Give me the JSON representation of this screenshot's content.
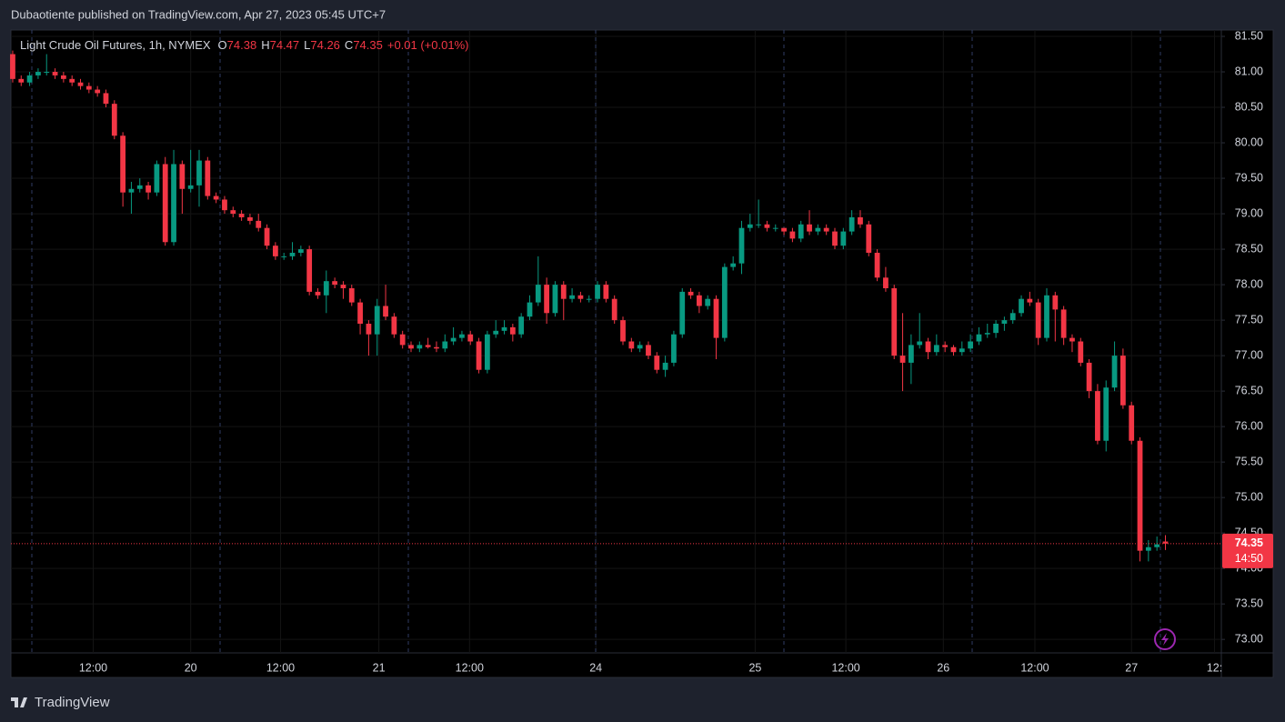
{
  "header": {
    "publisher": "Dubaotiente published on TradingView.com, Apr 27, 2023 05:45 UTC+7"
  },
  "footer": {
    "logo": "TradingView"
  },
  "chart_data": {
    "type": "candlestick",
    "title": "Light Crude Oil Futures, 1h, NYMEX",
    "ohlc_labels": [
      "O",
      "H",
      "L",
      "C"
    ],
    "change": "+0.01 (+0.01%)",
    "countdown": "14:50",
    "up_color": "#089981",
    "down_color": "#f23645",
    "grid": true,
    "open": [
      81.25,
      80.9,
      80.85,
      80.95,
      81.0,
      81.0,
      80.95,
      80.9,
      80.85,
      80.8,
      80.75,
      80.7,
      80.55,
      80.1,
      79.3,
      79.35,
      79.4,
      79.3,
      79.7,
      78.6,
      79.7,
      79.35,
      79.4,
      79.75,
      79.25,
      79.2,
      79.05,
      79.0,
      78.95,
      78.9,
      78.8,
      78.55,
      78.4,
      78.4,
      78.45,
      78.5,
      77.9,
      77.85,
      78.05,
      78.0,
      77.95,
      77.75,
      77.45,
      77.3,
      77.7,
      77.55,
      77.3,
      77.15,
      77.1,
      77.15,
      77.12,
      77.1,
      77.2,
      77.25,
      77.3,
      77.2,
      76.8,
      77.3,
      77.35,
      77.4,
      77.3,
      77.55,
      77.75,
      78.0,
      77.6,
      78.0,
      77.8,
      77.85,
      77.8,
      77.8,
      78.0,
      77.8,
      77.5,
      77.2,
      77.1,
      77.15,
      77.0,
      76.8,
      76.9,
      77.3,
      77.9,
      77.85,
      77.7,
      77.8,
      77.25,
      78.25,
      78.3,
      78.8,
      78.85,
      78.85,
      78.8,
      78.8,
      78.75,
      78.65,
      78.85,
      78.75,
      78.8,
      78.75,
      78.55,
      78.75,
      78.95,
      78.85,
      78.45,
      78.1,
      77.95,
      77.0,
      76.9,
      77.15,
      77.2,
      77.05,
      77.15,
      77.12,
      77.05,
      77.1,
      77.2,
      77.3,
      77.32,
      77.45,
      77.5,
      77.6,
      77.8,
      77.75,
      77.25,
      77.85,
      77.65,
      77.25,
      77.2,
      76.9,
      76.5,
      75.8,
      76.55,
      77.0,
      76.3,
      75.8,
      74.25,
      74.3,
      74.38
    ],
    "high": [
      81.3,
      80.95,
      81.0,
      81.05,
      81.25,
      81.05,
      81.0,
      80.95,
      80.9,
      80.85,
      80.8,
      80.75,
      80.6,
      80.15,
      79.45,
      79.5,
      79.45,
      79.75,
      79.8,
      79.9,
      79.75,
      79.9,
      79.9,
      79.8,
      79.3,
      79.25,
      79.1,
      79.05,
      79.0,
      79.0,
      78.85,
      78.6,
      78.45,
      78.6,
      78.55,
      78.55,
      77.95,
      78.2,
      78.1,
      78.05,
      78.0,
      77.8,
      77.5,
      77.8,
      78.0,
      77.6,
      77.35,
      77.2,
      77.2,
      77.25,
      77.2,
      77.3,
      77.4,
      77.35,
      77.35,
      77.25,
      77.35,
      77.5,
      77.5,
      77.45,
      77.6,
      77.85,
      78.4,
      78.1,
      78.05,
      78.05,
      77.95,
      77.9,
      77.85,
      78.05,
      78.05,
      77.85,
      77.55,
      77.25,
      77.2,
      77.2,
      77.05,
      77.0,
      77.35,
      77.95,
      77.95,
      77.9,
      77.85,
      77.85,
      78.3,
      78.4,
      78.9,
      79.0,
      79.2,
      78.9,
      78.85,
      78.8,
      78.8,
      78.9,
      79.05,
      78.85,
      78.85,
      78.8,
      78.8,
      79.05,
      79.05,
      78.9,
      78.5,
      78.25,
      78.0,
      77.6,
      77.3,
      77.6,
      77.25,
      77.3,
      77.2,
      77.15,
      77.2,
      77.3,
      77.4,
      77.45,
      77.5,
      77.55,
      77.65,
      77.85,
      77.9,
      77.8,
      77.95,
      77.9,
      77.7,
      77.3,
      77.25,
      76.95,
      76.6,
      76.65,
      77.2,
      77.1,
      76.35,
      75.85,
      74.4,
      74.45,
      74.47
    ],
    "low": [
      80.85,
      80.8,
      80.8,
      80.9,
      80.95,
      80.9,
      80.85,
      80.8,
      80.75,
      80.7,
      80.65,
      80.5,
      80.05,
      79.1,
      79.0,
      79.3,
      79.2,
      79.25,
      78.55,
      78.55,
      79.0,
      79.3,
      79.1,
      79.2,
      79.15,
      79.0,
      78.95,
      78.9,
      78.85,
      78.75,
      78.5,
      78.35,
      78.35,
      78.35,
      78.4,
      77.85,
      77.8,
      77.6,
      77.95,
      77.8,
      77.7,
      77.3,
      77.0,
      77.0,
      77.5,
      77.25,
      77.1,
      77.05,
      77.05,
      77.1,
      77.05,
      77.05,
      77.15,
      77.2,
      77.15,
      76.75,
      76.75,
      77.25,
      77.3,
      77.2,
      77.25,
      77.5,
      77.7,
      77.45,
      77.55,
      77.5,
      77.75,
      77.75,
      77.75,
      77.75,
      77.75,
      77.45,
      77.15,
      77.05,
      77.05,
      76.95,
      76.75,
      76.7,
      76.85,
      77.25,
      77.8,
      77.6,
      77.65,
      76.95,
      77.2,
      78.2,
      78.15,
      78.75,
      78.8,
      78.75,
      78.75,
      78.7,
      78.6,
      78.6,
      78.7,
      78.7,
      78.7,
      78.5,
      78.5,
      78.7,
      78.8,
      78.4,
      78.05,
      77.9,
      76.95,
      76.5,
      76.6,
      77.1,
      76.95,
      77.0,
      77.05,
      77.0,
      77.0,
      77.05,
      77.15,
      77.25,
      77.25,
      77.35,
      77.45,
      77.55,
      77.7,
      77.15,
      77.2,
      77.2,
      77.15,
      77.05,
      76.85,
      76.4,
      75.75,
      75.65,
      76.5,
      76.25,
      75.75,
      74.1,
      74.1,
      74.25,
      74.26
    ],
    "close": [
      80.9,
      80.85,
      80.95,
      81.0,
      81.0,
      80.95,
      80.9,
      80.85,
      80.8,
      80.75,
      80.7,
      80.55,
      80.1,
      79.3,
      79.35,
      79.4,
      79.3,
      79.7,
      78.6,
      79.7,
      79.35,
      79.4,
      79.75,
      79.25,
      79.2,
      79.05,
      79.0,
      78.95,
      78.9,
      78.8,
      78.55,
      78.4,
      78.4,
      78.45,
      78.5,
      77.9,
      77.85,
      78.05,
      78.0,
      77.95,
      77.75,
      77.45,
      77.3,
      77.7,
      77.55,
      77.3,
      77.15,
      77.1,
      77.15,
      77.12,
      77.1,
      77.2,
      77.25,
      77.3,
      77.2,
      76.8,
      77.3,
      77.35,
      77.4,
      77.3,
      77.55,
      77.75,
      78.0,
      77.6,
      78.0,
      77.8,
      77.85,
      77.8,
      77.8,
      78.0,
      77.8,
      77.5,
      77.2,
      77.1,
      77.15,
      77.0,
      76.8,
      76.9,
      77.3,
      77.9,
      77.85,
      77.7,
      77.8,
      77.25,
      78.25,
      78.3,
      78.8,
      78.85,
      78.85,
      78.8,
      78.8,
      78.75,
      78.65,
      78.85,
      78.75,
      78.8,
      78.75,
      78.55,
      78.75,
      78.95,
      78.85,
      78.45,
      78.1,
      77.95,
      77.0,
      76.9,
      77.15,
      77.2,
      77.05,
      77.15,
      77.12,
      77.05,
      77.1,
      77.2,
      77.3,
      77.32,
      77.45,
      77.5,
      77.6,
      77.8,
      77.75,
      77.25,
      77.85,
      77.65,
      77.25,
      77.2,
      76.9,
      76.5,
      75.8,
      76.55,
      77.0,
      76.3,
      75.8,
      74.25,
      74.3,
      74.34,
      74.35
    ],
    "xlim": [
      -0.21,
      142.6
    ],
    "xticks": [
      {
        "value": 9.5,
        "label": "12:00"
      },
      {
        "value": 21.0,
        "label": "20"
      },
      {
        "value": 31.6,
        "label": "12:00"
      },
      {
        "value": 43.2,
        "label": "21"
      },
      {
        "value": 53.9,
        "label": "12:00"
      },
      {
        "value": 68.8,
        "label": "24"
      },
      {
        "value": 87.6,
        "label": "25"
      },
      {
        "value": 98.3,
        "label": "12:00"
      },
      {
        "value": 109.8,
        "label": "26"
      },
      {
        "value": 120.6,
        "label": "12:00"
      },
      {
        "value": 132.0,
        "label": "27"
      },
      {
        "value": 141.8,
        "label": "12:"
      }
    ],
    "ylim": [
      72.81,
      81.59
    ],
    "yticks": [
      {
        "value": 73,
        "label": "73.00"
      },
      {
        "value": 73.5,
        "label": "73.50"
      },
      {
        "value": 74,
        "label": "74.00"
      },
      {
        "value": 74.5,
        "label": "74.50"
      },
      {
        "value": 75,
        "label": "75.00"
      },
      {
        "value": 75.5,
        "label": "75.50"
      },
      {
        "value": 76,
        "label": "76.00"
      },
      {
        "value": 76.5,
        "label": "76.50"
      },
      {
        "value": 77,
        "label": "77.00"
      },
      {
        "value": 77.5,
        "label": "77.50"
      },
      {
        "value": 78,
        "label": "78.00"
      },
      {
        "value": 78.5,
        "label": "78.50"
      },
      {
        "value": 79,
        "label": "79.00"
      },
      {
        "value": 79.5,
        "label": "79.50"
      },
      {
        "value": 80,
        "label": "80.00"
      },
      {
        "value": 80.5,
        "label": "80.50"
      },
      {
        "value": 81,
        "label": "81.00"
      },
      {
        "value": 81.5,
        "label": "81.50"
      }
    ]
  }
}
